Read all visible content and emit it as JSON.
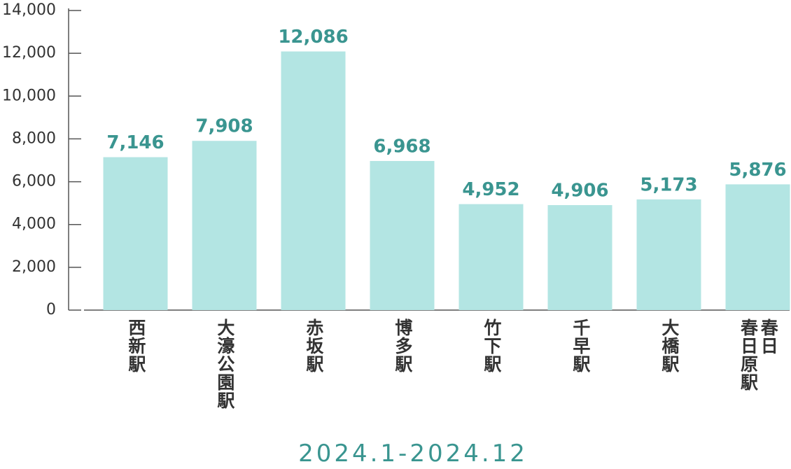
{
  "chart_data": {
    "type": "bar",
    "x_label": "2024.1-2024.12",
    "categories": [
      "西新駅",
      "大濠公園駅",
      "赤坂駅",
      "博多駅",
      "竹下駅",
      "千早駅",
      "大橋駅",
      "春日\n春日原駅"
    ],
    "values": [
      7146,
      7908,
      12086,
      6968,
      4952,
      4906,
      5173,
      5876
    ],
    "value_labels": [
      "7,146",
      "7,908",
      "12,086",
      "6,968",
      "4,952",
      "4,906",
      "5,173",
      "5,876"
    ],
    "color": "#b3e5e3",
    "ylim": [
      0,
      14000
    ],
    "yticks": [
      0,
      {
        "value": 2000,
        "label": "2,000"
      },
      {
        "value": 4000,
        "label": "4,000"
      },
      {
        "value": 6000,
        "label": "6,000"
      },
      {
        "value": 8000,
        "label": "8,000"
      },
      {
        "value": 10000,
        "label": "10,000"
      },
      {
        "value": 12000,
        "label": "12,000"
      },
      {
        "value": 14000,
        "label": "14,000"
      }
    ],
    "grid": false
  }
}
